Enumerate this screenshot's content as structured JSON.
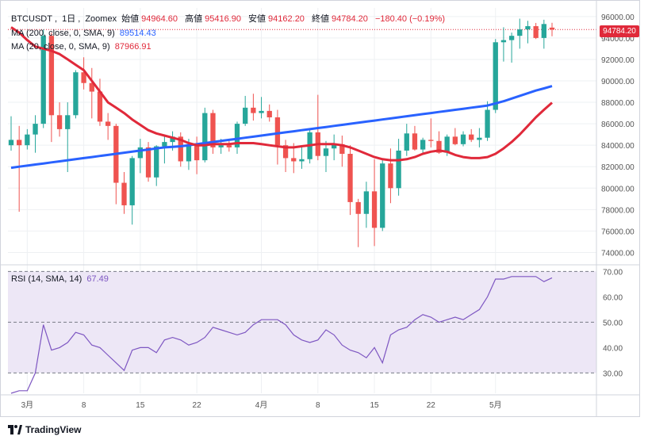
{
  "header": {
    "symbol": "BTCUSDT",
    "interval": "1日",
    "exchange": "Zoomex",
    "open_label": "始値",
    "open": "94964.60",
    "high_label": "高値",
    "high": "95416.90",
    "low_label": "安値",
    "low": "94162.20",
    "close_label": "終値",
    "close": "94784.20",
    "change": "−180.40 (−0.19%)"
  },
  "indicators": {
    "ma200_label": "MA (200, close, 0, SMA, 9)",
    "ma200_value": "89514.43",
    "ma20_label": "MA (20, close, 0, SMA, 9)",
    "ma20_value": "87966.91",
    "rsi_label": "RSI (14, SMA, 14)",
    "rsi_value": "67.49"
  },
  "current_price_badge": "94784.20",
  "branding": "TradingView",
  "colors": {
    "up": "#26a69a",
    "down": "#ef5350",
    "ma200": "#2962ff",
    "ma20": "#e0293a",
    "rsi": "#7e57c2",
    "rsi_band": "#ede7f6",
    "grid": "#eef0f3",
    "text": "#131722",
    "axis_text": "#555"
  },
  "chart_data": [
    {
      "type": "candlestick",
      "title": "BTCUSDT, 1日, Zoomex",
      "x_tick_labels": [
        "3月",
        "8",
        "15",
        "22",
        "4月",
        "8",
        "15",
        "22",
        "5月"
      ],
      "y_tick_labels": [
        "74000.00",
        "76000.00",
        "78000.00",
        "80000.00",
        "82000.00",
        "84000.00",
        "86000.00",
        "88000.00",
        "90000.00",
        "92000.00",
        "94000.00",
        "96000.00"
      ],
      "ylim": [
        73000,
        96800
      ],
      "candles": [
        {
          "o": 84000,
          "h": 86700,
          "l": 83500,
          "c": 84500
        },
        {
          "o": 84500,
          "h": 85800,
          "l": 77800,
          "c": 84000
        },
        {
          "o": 84000,
          "h": 85500,
          "l": 83600,
          "c": 85000
        },
        {
          "o": 85000,
          "h": 86800,
          "l": 83300,
          "c": 86000
        },
        {
          "o": 86000,
          "h": 94800,
          "l": 85600,
          "c": 94200
        },
        {
          "o": 94200,
          "h": 94500,
          "l": 84300,
          "c": 86800
        },
        {
          "o": 86800,
          "h": 88000,
          "l": 84800,
          "c": 85500
        },
        {
          "o": 85500,
          "h": 88000,
          "l": 81500,
          "c": 86800
        },
        {
          "o": 86800,
          "h": 91000,
          "l": 86500,
          "c": 90800
        },
        {
          "o": 90800,
          "h": 92200,
          "l": 89200,
          "c": 89800
        },
        {
          "o": 89800,
          "h": 91200,
          "l": 86500,
          "c": 89000
        },
        {
          "o": 89000,
          "h": 90200,
          "l": 85800,
          "c": 86200
        },
        {
          "o": 86200,
          "h": 87000,
          "l": 84500,
          "c": 85800
        },
        {
          "o": 85800,
          "h": 86000,
          "l": 78500,
          "c": 80500
        },
        {
          "o": 80500,
          "h": 81500,
          "l": 77600,
          "c": 78400
        },
        {
          "o": 78400,
          "h": 83000,
          "l": 76600,
          "c": 82800
        },
        {
          "o": 82800,
          "h": 84600,
          "l": 81400,
          "c": 83800
        },
        {
          "o": 83800,
          "h": 84300,
          "l": 80600,
          "c": 81000
        },
        {
          "o": 81000,
          "h": 84000,
          "l": 80200,
          "c": 83900
        },
        {
          "o": 83900,
          "h": 85000,
          "l": 82300,
          "c": 84300
        },
        {
          "o": 84300,
          "h": 85300,
          "l": 83500,
          "c": 84800
        },
        {
          "o": 84800,
          "h": 85200,
          "l": 82000,
          "c": 82500
        },
        {
          "o": 82500,
          "h": 84600,
          "l": 81700,
          "c": 84100
        },
        {
          "o": 84100,
          "h": 84800,
          "l": 81300,
          "c": 82600
        },
        {
          "o": 82600,
          "h": 87500,
          "l": 82400,
          "c": 87000
        },
        {
          "o": 87000,
          "h": 87300,
          "l": 83200,
          "c": 83800
        },
        {
          "o": 83800,
          "h": 84600,
          "l": 83200,
          "c": 84000
        },
        {
          "o": 84000,
          "h": 84400,
          "l": 83400,
          "c": 83800
        },
        {
          "o": 83800,
          "h": 86200,
          "l": 83200,
          "c": 86000
        },
        {
          "o": 86000,
          "h": 88600,
          "l": 85800,
          "c": 87500
        },
        {
          "o": 87500,
          "h": 88800,
          "l": 86300,
          "c": 87000
        },
        {
          "o": 87000,
          "h": 88500,
          "l": 86500,
          "c": 87200
        },
        {
          "o": 87200,
          "h": 87800,
          "l": 86200,
          "c": 86600
        },
        {
          "o": 86600,
          "h": 87300,
          "l": 82200,
          "c": 84000
        },
        {
          "o": 84000,
          "h": 84500,
          "l": 81500,
          "c": 82800
        },
        {
          "o": 82800,
          "h": 84200,
          "l": 81400,
          "c": 82500
        },
        {
          "o": 82500,
          "h": 83800,
          "l": 81800,
          "c": 82700
        },
        {
          "o": 82700,
          "h": 85500,
          "l": 82300,
          "c": 85200
        },
        {
          "o": 85200,
          "h": 88700,
          "l": 82600,
          "c": 83000
        },
        {
          "o": 83000,
          "h": 84400,
          "l": 81500,
          "c": 83700
        },
        {
          "o": 83700,
          "h": 85000,
          "l": 82600,
          "c": 84100
        },
        {
          "o": 84100,
          "h": 84900,
          "l": 82000,
          "c": 83200
        },
        {
          "o": 83200,
          "h": 84000,
          "l": 77500,
          "c": 78700
        },
        {
          "o": 78700,
          "h": 79000,
          "l": 74500,
          "c": 77600
        },
        {
          "o": 77600,
          "h": 80600,
          "l": 76300,
          "c": 79700
        },
        {
          "o": 79700,
          "h": 82700,
          "l": 74600,
          "c": 76300
        },
        {
          "o": 76300,
          "h": 82600,
          "l": 76000,
          "c": 82300
        },
        {
          "o": 82300,
          "h": 83700,
          "l": 78600,
          "c": 80000
        },
        {
          "o": 80000,
          "h": 84600,
          "l": 79300,
          "c": 83500
        },
        {
          "o": 83500,
          "h": 86000,
          "l": 83000,
          "c": 85100
        },
        {
          "o": 85100,
          "h": 85800,
          "l": 83500,
          "c": 83600
        },
        {
          "o": 83600,
          "h": 84700,
          "l": 83200,
          "c": 84500
        },
        {
          "o": 84500,
          "h": 86500,
          "l": 83800,
          "c": 84400
        },
        {
          "o": 84400,
          "h": 85300,
          "l": 83200,
          "c": 83300
        },
        {
          "o": 83300,
          "h": 85000,
          "l": 83000,
          "c": 84800
        },
        {
          "o": 84800,
          "h": 85600,
          "l": 84000,
          "c": 84100
        },
        {
          "o": 84100,
          "h": 85300,
          "l": 83900,
          "c": 85000
        },
        {
          "o": 85000,
          "h": 85500,
          "l": 84300,
          "c": 84500
        },
        {
          "o": 84500,
          "h": 85600,
          "l": 83800,
          "c": 84700
        },
        {
          "o": 84700,
          "h": 88100,
          "l": 84400,
          "c": 87300
        },
        {
          "o": 87300,
          "h": 93900,
          "l": 87000,
          "c": 93600
        },
        {
          "o": 93600,
          "h": 95000,
          "l": 91800,
          "c": 93800
        },
        {
          "o": 93800,
          "h": 94500,
          "l": 91700,
          "c": 94200
        },
        {
          "o": 94200,
          "h": 95800,
          "l": 93000,
          "c": 94800
        },
        {
          "o": 94800,
          "h": 95600,
          "l": 93500,
          "c": 95100
        },
        {
          "o": 95100,
          "h": 95400,
          "l": 93900,
          "c": 94000
        },
        {
          "o": 94000,
          "h": 95700,
          "l": 93000,
          "c": 95300
        },
        {
          "o": 94964.6,
          "h": 95416.9,
          "l": 94162.2,
          "c": 94784.2
        }
      ],
      "series": [
        {
          "name": "MA (200, close, 0, SMA, 9)",
          "values": [
            81900,
            82000,
            82100,
            82200,
            82300,
            82400,
            82500,
            82600,
            82700,
            82800,
            82900,
            83000,
            83100,
            83200,
            83300,
            83400,
            83500,
            83600,
            83700,
            83800,
            83850,
            83900,
            84000,
            84100,
            84200,
            84300,
            84400,
            84500,
            84600,
            84700,
            84800,
            84900,
            85000,
            85100,
            85200,
            85300,
            85400,
            85500,
            85600,
            85700,
            85800,
            85900,
            86000,
            86100,
            86200,
            86300,
            86400,
            86500,
            86600,
            86700,
            86800,
            86900,
            87000,
            87100,
            87200,
            87300,
            87400,
            87500,
            87600,
            87700,
            87900,
            88100,
            88350,
            88600,
            88850,
            89100,
            89300,
            89514.43
          ]
        },
        {
          "name": "MA (20, close, 0, SMA, 9)",
          "values": [
            95000,
            94500,
            93800,
            93200,
            93000,
            92800,
            92500,
            92000,
            91500,
            91000,
            90000,
            89000,
            88000,
            87500,
            87000,
            86400,
            85900,
            85400,
            85100,
            84900,
            84700,
            84500,
            84200,
            84000,
            84000,
            84100,
            84100,
            84100,
            84200,
            84200,
            84200,
            84100,
            84000,
            83900,
            83800,
            83800,
            83900,
            84000,
            84100,
            84100,
            84100,
            84000,
            83800,
            83500,
            83200,
            82900,
            82700,
            82600,
            82600,
            82700,
            82900,
            83200,
            83400,
            83500,
            83400,
            83100,
            82900,
            82800,
            82800,
            82900,
            83200,
            83700,
            84300,
            85000,
            85800,
            86600,
            87300,
            87966.91
          ]
        }
      ]
    },
    {
      "type": "line",
      "title": "RSI (14, SMA, 14)",
      "y_tick_labels": [
        "30.00",
        "40.00",
        "50.00",
        "60.00",
        "70.00"
      ],
      "ylim": [
        22,
        72
      ],
      "bands": [
        30,
        50,
        70
      ],
      "series": [
        {
          "name": "RSI",
          "values": [
            22,
            23,
            23,
            30,
            49,
            39,
            40,
            42,
            46,
            45,
            41,
            40,
            37,
            34,
            31,
            39,
            40,
            40,
            38,
            43,
            44,
            43,
            41,
            42,
            44,
            48,
            47,
            46,
            45,
            46,
            49,
            51,
            51,
            51,
            49,
            45,
            43,
            42,
            43,
            47,
            45,
            41,
            39,
            38,
            36,
            40,
            34,
            45,
            47,
            48,
            51,
            53,
            52,
            50,
            51,
            52,
            51,
            53,
            55,
            60,
            67,
            67,
            68,
            68,
            68,
            68,
            66,
            67.49
          ]
        }
      ]
    }
  ]
}
